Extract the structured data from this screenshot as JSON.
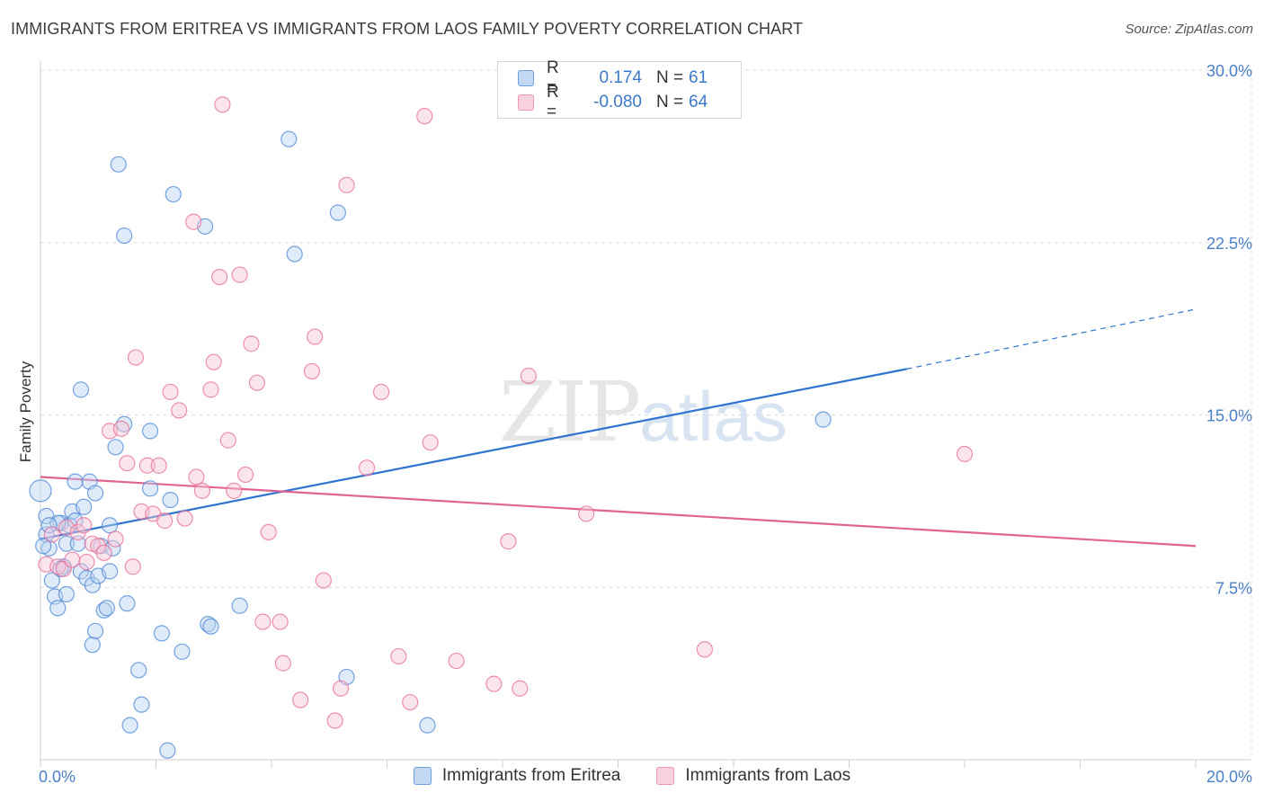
{
  "title": "IMMIGRANTS FROM ERITREA VS IMMIGRANTS FROM LAOS FAMILY POVERTY CORRELATION CHART",
  "source": "Source: ZipAtlas.com",
  "watermark": {
    "zip": "ZIP",
    "atlas": "atlas"
  },
  "colors": {
    "blue": "#4a86d4",
    "blue_fill": "#b9d3f2",
    "pink": "#e76b96",
    "pink_fill": "#f7c6d6",
    "tick": "#4a7fc9"
  },
  "legend": {
    "rows": [
      {
        "r_label": "R =",
        "r_value": "0.174",
        "n_label": "N =",
        "n_value": "61"
      },
      {
        "r_label": "R =",
        "r_value": "-0.080",
        "n_label": "N =",
        "n_value": "64"
      }
    ]
  },
  "bottom_legend": [
    "Immigrants from Eritrea",
    "Immigrants from Laos"
  ],
  "chart_data": {
    "type": "scatter",
    "title": "IMMIGRANTS FROM ERITREA VS IMMIGRANTS FROM LAOS FAMILY POVERTY CORRELATION CHART",
    "xlabel": "",
    "ylabel": "Family Poverty",
    "xlim": [
      0,
      20
    ],
    "ylim": [
      0,
      30
    ],
    "x_tick_labels": [
      "0.0%",
      "20.0%"
    ],
    "y_ticks": [
      7.5,
      15.0,
      22.5,
      30.0
    ],
    "y_tick_labels": [
      "7.5%",
      "15.0%",
      "22.5%",
      "30.0%"
    ],
    "series": [
      {
        "name": "Immigrants from Eritrea",
        "color": "#4a86d4",
        "trend": {
          "x0": 0,
          "y0": 9.6,
          "x1": 15.0,
          "y1": 17.0,
          "dash_to_x": 20.0,
          "dash_to_y": 19.6
        },
        "points": [
          [
            0.0,
            11.7
          ],
          [
            0.1,
            9.8
          ],
          [
            0.1,
            10.6
          ],
          [
            0.15,
            9.2
          ],
          [
            0.2,
            7.8
          ],
          [
            0.25,
            7.1
          ],
          [
            0.3,
            6.6
          ],
          [
            0.35,
            10.3
          ],
          [
            0.4,
            8.4
          ],
          [
            0.45,
            9.4
          ],
          [
            0.45,
            7.2
          ],
          [
            0.5,
            10.2
          ],
          [
            0.55,
            10.8
          ],
          [
            0.6,
            12.1
          ],
          [
            0.65,
            9.4
          ],
          [
            0.7,
            8.2
          ],
          [
            0.7,
            16.1
          ],
          [
            0.75,
            11.0
          ],
          [
            0.8,
            7.9
          ],
          [
            0.85,
            12.1
          ],
          [
            0.9,
            7.6
          ],
          [
            0.9,
            5.0
          ],
          [
            0.95,
            11.6
          ],
          [
            0.95,
            5.6
          ],
          [
            1.0,
            8.0
          ],
          [
            1.05,
            9.3
          ],
          [
            1.1,
            6.5
          ],
          [
            1.15,
            6.6
          ],
          [
            1.2,
            8.2
          ],
          [
            1.2,
            10.2
          ],
          [
            1.25,
            9.2
          ],
          [
            1.3,
            13.6
          ],
          [
            1.35,
            25.9
          ],
          [
            1.45,
            22.8
          ],
          [
            1.45,
            14.6
          ],
          [
            1.5,
            6.8
          ],
          [
            1.55,
            1.5
          ],
          [
            1.7,
            3.9
          ],
          [
            1.75,
            2.4
          ],
          [
            1.9,
            14.3
          ],
          [
            1.9,
            11.8
          ],
          [
            2.1,
            5.5
          ],
          [
            2.2,
            0.4
          ],
          [
            2.25,
            11.3
          ],
          [
            2.3,
            24.6
          ],
          [
            2.45,
            4.7
          ],
          [
            2.85,
            23.2
          ],
          [
            2.9,
            5.9
          ],
          [
            2.95,
            5.8
          ],
          [
            3.45,
            6.7
          ],
          [
            4.3,
            27.0
          ],
          [
            4.4,
            22.0
          ],
          [
            5.15,
            23.8
          ],
          [
            5.3,
            3.6
          ],
          [
            6.7,
            1.5
          ],
          [
            13.55,
            14.8
          ],
          [
            0.05,
            9.3
          ],
          [
            0.3,
            10.3
          ],
          [
            0.6,
            10.4
          ],
          [
            0.35,
            8.3
          ],
          [
            0.15,
            10.2
          ]
        ]
      },
      {
        "name": "Immigrants from Laos",
        "color": "#e76b96",
        "trend": {
          "x0": 0,
          "y0": 12.3,
          "x1": 20.0,
          "y1": 9.3
        },
        "points": [
          [
            0.1,
            8.5
          ],
          [
            0.2,
            9.8
          ],
          [
            0.3,
            8.4
          ],
          [
            0.4,
            8.3
          ],
          [
            0.45,
            10.1
          ],
          [
            0.55,
            8.7
          ],
          [
            0.65,
            9.9
          ],
          [
            0.75,
            10.2
          ],
          [
            0.8,
            8.6
          ],
          [
            0.9,
            9.4
          ],
          [
            1.0,
            9.3
          ],
          [
            1.1,
            9.0
          ],
          [
            1.2,
            14.3
          ],
          [
            1.3,
            9.6
          ],
          [
            1.4,
            14.4
          ],
          [
            1.5,
            12.9
          ],
          [
            1.6,
            8.4
          ],
          [
            1.65,
            17.5
          ],
          [
            1.75,
            10.8
          ],
          [
            1.85,
            12.8
          ],
          [
            1.95,
            10.7
          ],
          [
            2.05,
            12.8
          ],
          [
            2.15,
            10.4
          ],
          [
            2.25,
            16.0
          ],
          [
            2.4,
            15.2
          ],
          [
            2.5,
            10.5
          ],
          [
            2.65,
            23.4
          ],
          [
            2.7,
            12.3
          ],
          [
            2.8,
            11.7
          ],
          [
            2.95,
            16.1
          ],
          [
            3.0,
            17.3
          ],
          [
            3.1,
            21.0
          ],
          [
            3.15,
            28.5
          ],
          [
            3.25,
            13.9
          ],
          [
            3.35,
            11.7
          ],
          [
            3.45,
            21.1
          ],
          [
            3.55,
            12.4
          ],
          [
            3.65,
            18.1
          ],
          [
            3.75,
            16.4
          ],
          [
            3.85,
            6.0
          ],
          [
            3.95,
            9.9
          ],
          [
            4.15,
            6.0
          ],
          [
            4.2,
            4.2
          ],
          [
            4.5,
            2.6
          ],
          [
            4.7,
            16.9
          ],
          [
            4.75,
            18.4
          ],
          [
            4.9,
            7.8
          ],
          [
            5.1,
            1.7
          ],
          [
            5.2,
            3.1
          ],
          [
            5.3,
            25.0
          ],
          [
            5.65,
            12.7
          ],
          [
            5.9,
            16.0
          ],
          [
            6.2,
            4.5
          ],
          [
            6.4,
            2.5
          ],
          [
            6.65,
            28.0
          ],
          [
            6.75,
            13.8
          ],
          [
            7.2,
            4.3
          ],
          [
            7.85,
            3.3
          ],
          [
            8.1,
            9.5
          ],
          [
            8.3,
            3.1
          ],
          [
            8.45,
            16.7
          ],
          [
            9.45,
            10.7
          ],
          [
            11.5,
            4.8
          ],
          [
            16.0,
            13.3
          ]
        ]
      }
    ]
  }
}
